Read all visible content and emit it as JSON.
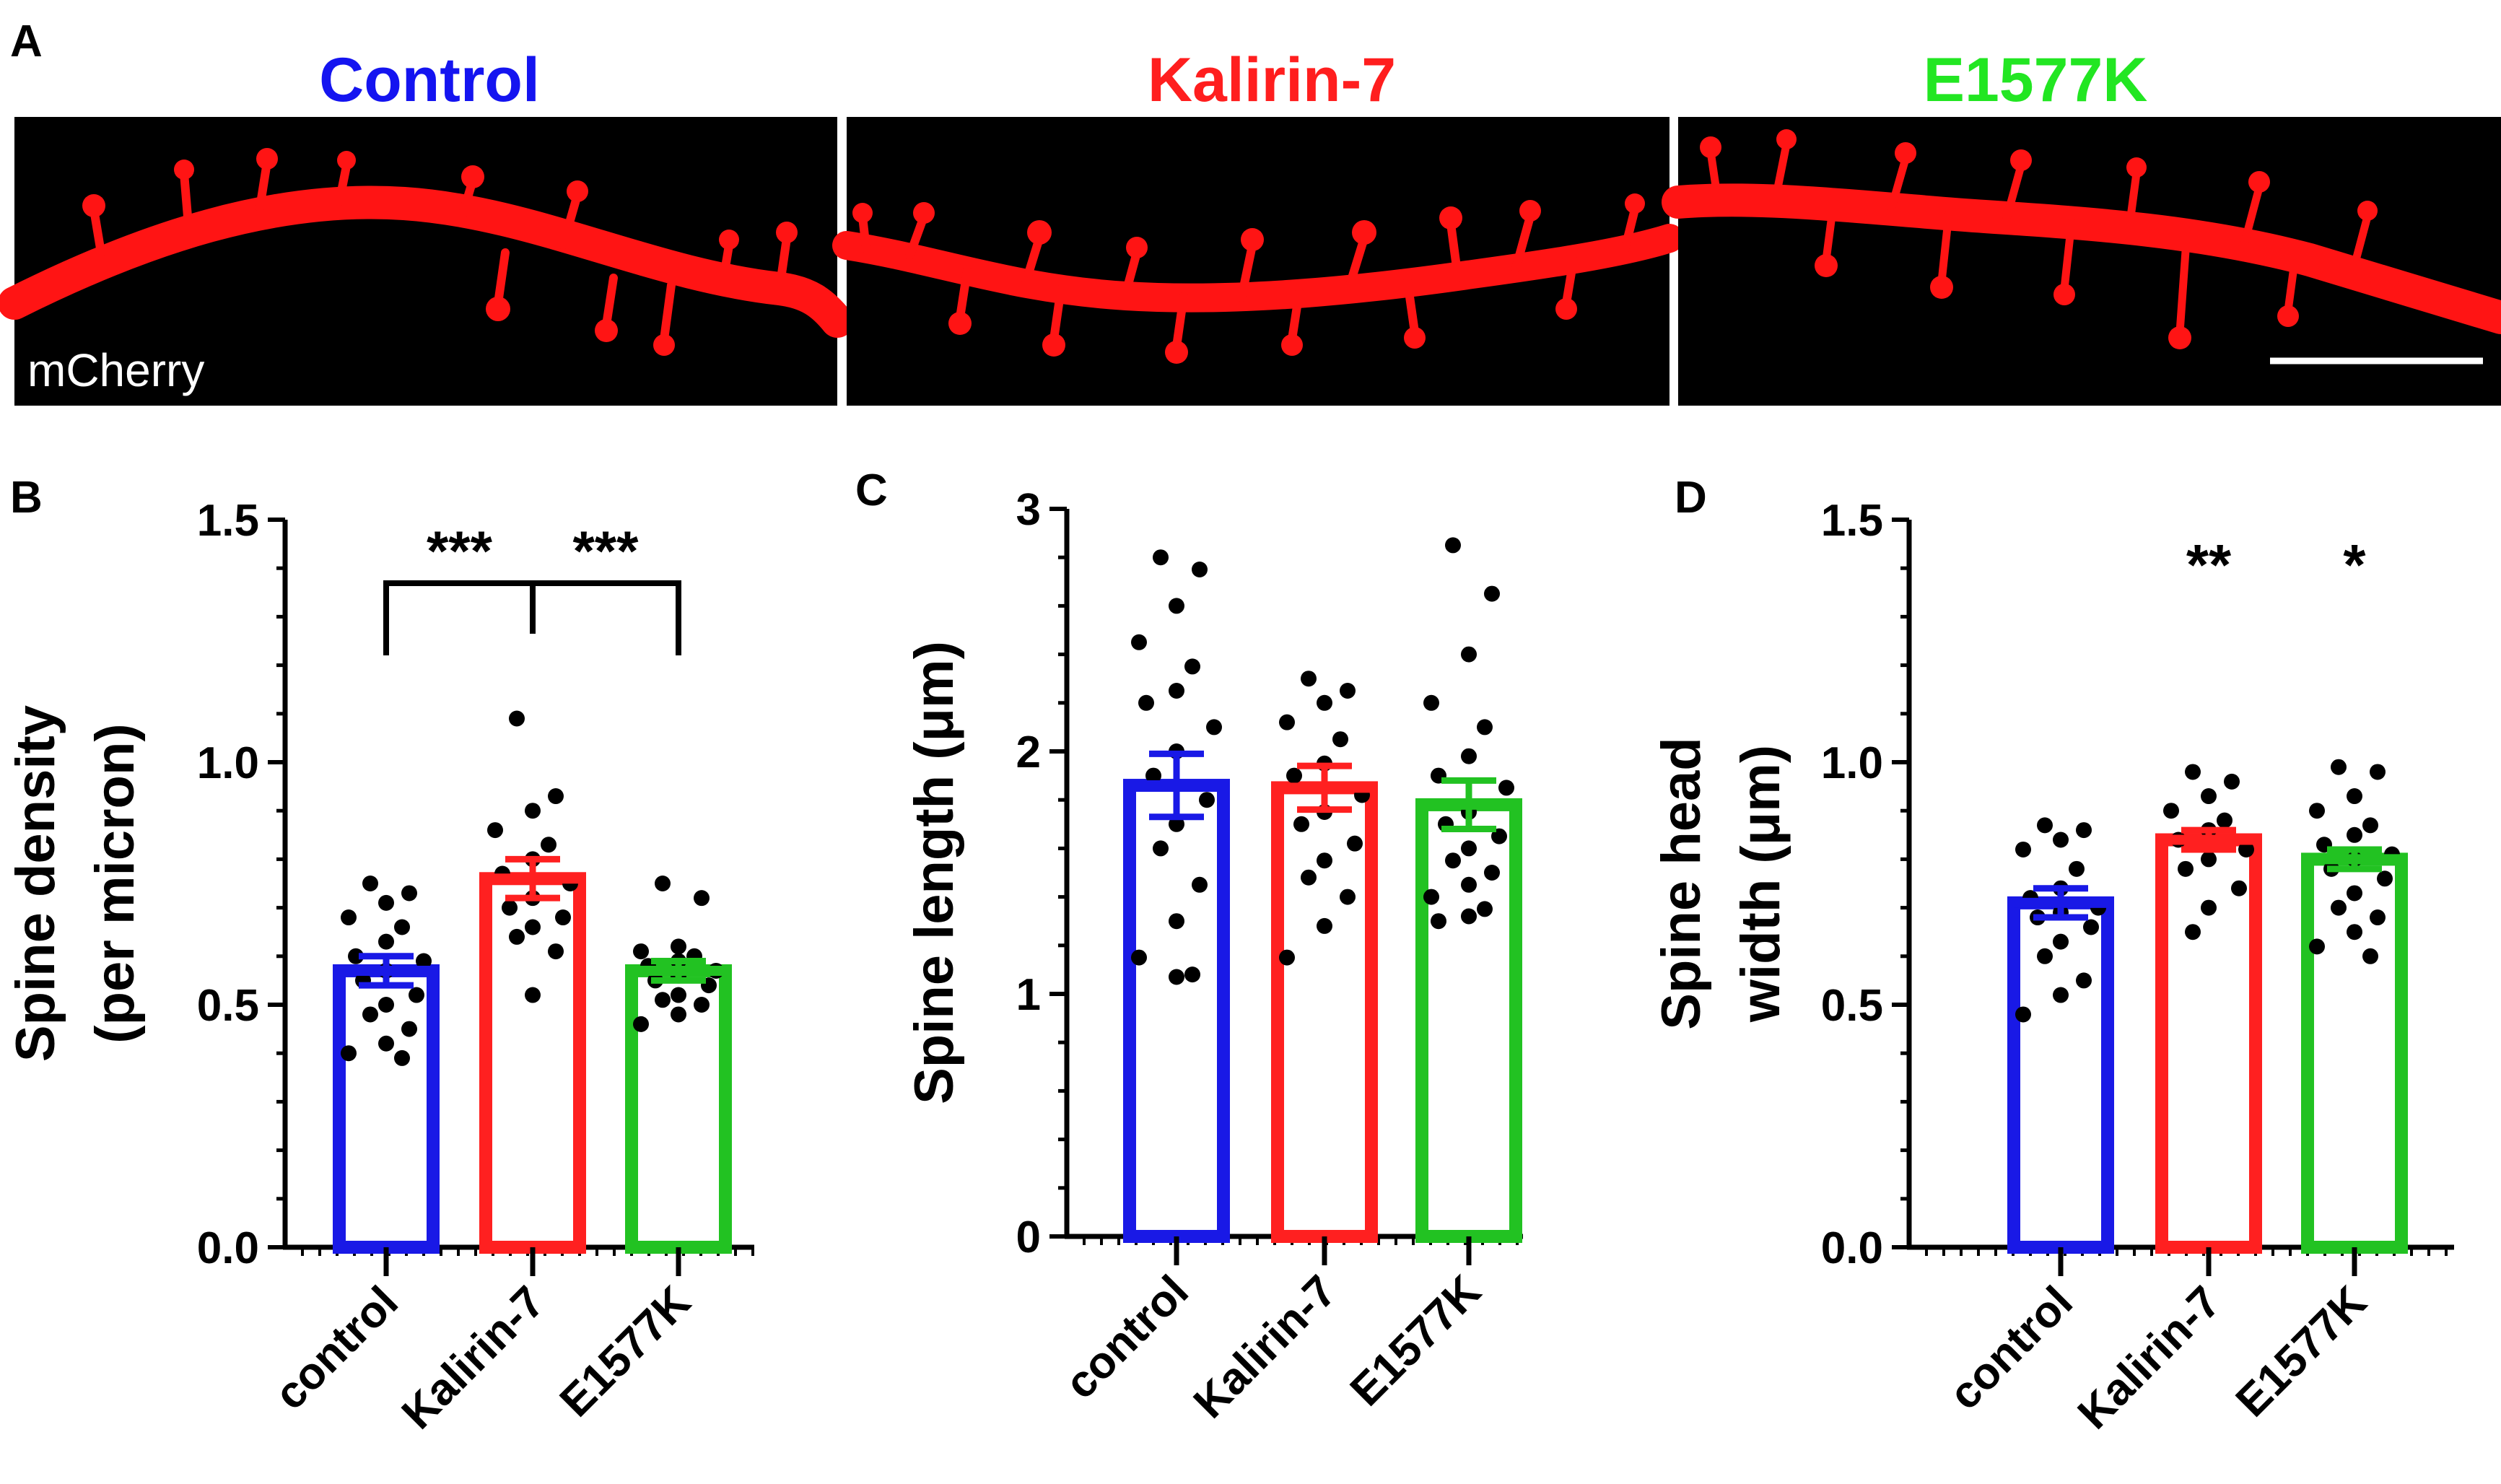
{
  "panel_labels": {
    "a": "A",
    "b": "B",
    "c": "C",
    "d": "D"
  },
  "images": {
    "stain_label": "mCherry",
    "headers": [
      {
        "text": "Control",
        "color": "#1414f0"
      },
      {
        "text": "Kalirin-7",
        "color": "#ff1e1e"
      },
      {
        "text": "E1577K",
        "color": "#22e622"
      }
    ],
    "dendrite_color": "#ff1414",
    "background_color": "#000000",
    "scale_bar_color": "#ffffff"
  },
  "chart_data": [
    {
      "panel": "B",
      "type": "bar",
      "ylabel_lines": [
        "Spine density",
        "(per micron)"
      ],
      "categories": [
        "control",
        "Kalirin-7",
        "E1577K"
      ],
      "colors": [
        "#1919e6",
        "#ff2020",
        "#22c222"
      ],
      "values": [
        0.57,
        0.76,
        0.57
      ],
      "sem": [
        0.03,
        0.04,
        0.02
      ],
      "points": [
        [
          0.75,
          0.73,
          0.71,
          0.68,
          0.66,
          0.63,
          0.6,
          0.59,
          0.57,
          0.55,
          0.52,
          0.5,
          0.48,
          0.45,
          0.42,
          0.4,
          0.39
        ],
        [
          1.09,
          0.93,
          0.9,
          0.86,
          0.83,
          0.8,
          0.77,
          0.75,
          0.72,
          0.7,
          0.68,
          0.66,
          0.64,
          0.61,
          0.52
        ],
        [
          0.75,
          0.72,
          0.62,
          0.61,
          0.6,
          0.59,
          0.58,
          0.57,
          0.56,
          0.55,
          0.54,
          0.52,
          0.51,
          0.5,
          0.48,
          0.46
        ]
      ],
      "ylim": [
        0,
        1.5
      ],
      "yticks": [
        "0.0",
        "0.5",
        "1.0",
        "1.5"
      ],
      "significance": {
        "bracket": true,
        "left_label": "***",
        "right_label": "***"
      }
    },
    {
      "panel": "C",
      "type": "bar",
      "ylabel_lines": [
        "Spine length (μm)"
      ],
      "categories": [
        "control",
        "Kalirin-7",
        "E1577K"
      ],
      "colors": [
        "#1919e6",
        "#ff2020",
        "#22c222"
      ],
      "values": [
        1.86,
        1.85,
        1.78
      ],
      "sem": [
        0.13,
        0.09,
        0.1
      ],
      "points": [
        [
          2.8,
          2.75,
          2.6,
          2.45,
          2.35,
          2.25,
          2.2,
          2.1,
          2.0,
          1.9,
          1.8,
          1.7,
          1.6,
          1.45,
          1.3,
          1.15,
          1.08,
          1.07
        ],
        [
          2.3,
          2.25,
          2.2,
          2.12,
          2.05,
          1.95,
          1.9,
          1.82,
          1.75,
          1.7,
          1.62,
          1.55,
          1.48,
          1.4,
          1.28,
          1.15
        ],
        [
          2.85,
          2.65,
          2.4,
          2.2,
          2.1,
          1.98,
          1.9,
          1.85,
          1.75,
          1.7,
          1.65,
          1.6,
          1.55,
          1.5,
          1.45,
          1.4,
          1.35,
          1.32,
          1.3
        ]
      ],
      "ylim": [
        0,
        3
      ],
      "yticks": [
        "0",
        "1",
        "2",
        "3"
      ]
    },
    {
      "panel": "D",
      "type": "bar",
      "ylabel_lines": [
        "Spine head",
        "width (μm)"
      ],
      "categories": [
        "control",
        "Kalirin-7",
        "E1577K"
      ],
      "colors": [
        "#1919e6",
        "#ff2020",
        "#22c222"
      ],
      "values": [
        0.71,
        0.84,
        0.8
      ],
      "sem": [
        0.03,
        0.02,
        0.02
      ],
      "points": [
        [
          0.87,
          0.86,
          0.84,
          0.82,
          0.78,
          0.74,
          0.72,
          0.7,
          0.69,
          0.68,
          0.66,
          0.63,
          0.6,
          0.55,
          0.52,
          0.48
        ],
        [
          0.98,
          0.96,
          0.93,
          0.9,
          0.88,
          0.86,
          0.84,
          0.82,
          0.8,
          0.78,
          0.74,
          0.7,
          0.65
        ],
        [
          0.99,
          0.98,
          0.93,
          0.9,
          0.87,
          0.85,
          0.83,
          0.81,
          0.8,
          0.78,
          0.76,
          0.73,
          0.7,
          0.68,
          0.65,
          0.62,
          0.6
        ]
      ],
      "ylim": [
        0,
        1.5
      ],
      "yticks": [
        "0.0",
        "0.5",
        "1.0",
        "1.5"
      ],
      "significance": {
        "labels": [
          "",
          "**",
          "*"
        ]
      }
    }
  ]
}
